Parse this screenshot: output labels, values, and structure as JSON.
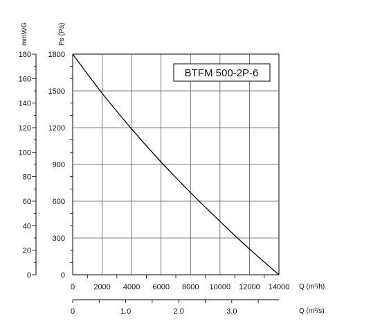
{
  "chart_data": {
    "type": "line",
    "model_label": "BTFM 500-2P-6",
    "axes": {
      "ps_pa": {
        "label": "Ps (Pa)",
        "range": [
          0,
          1800
        ],
        "ticks": [
          0,
          300,
          600,
          900,
          1200,
          1500,
          1800
        ]
      },
      "ps_mmwg": {
        "label": "mmWG",
        "range": [
          0,
          180
        ],
        "ticks": [
          0,
          20,
          40,
          60,
          80,
          100,
          120,
          140,
          160,
          180
        ]
      },
      "q_m3h": {
        "label": "Q (m³/h)",
        "range": [
          0,
          14000
        ],
        "ticks": [
          0,
          2000,
          4000,
          6000,
          8000,
          10000,
          12000,
          14000
        ]
      },
      "q_m3s": {
        "label": "Q (m³/s)",
        "range": [
          0,
          3.89
        ],
        "ticks": [
          "0",
          "1.0",
          "2.0",
          "3.0"
        ]
      }
    },
    "grid": true,
    "series": [
      {
        "color": "#000000",
        "x": [
          0,
          2000,
          4000,
          6000,
          8000,
          10000,
          12000,
          14000
        ],
        "y": [
          1800,
          1480,
          1190,
          920,
          670,
          435,
          210,
          0
        ]
      }
    ]
  }
}
